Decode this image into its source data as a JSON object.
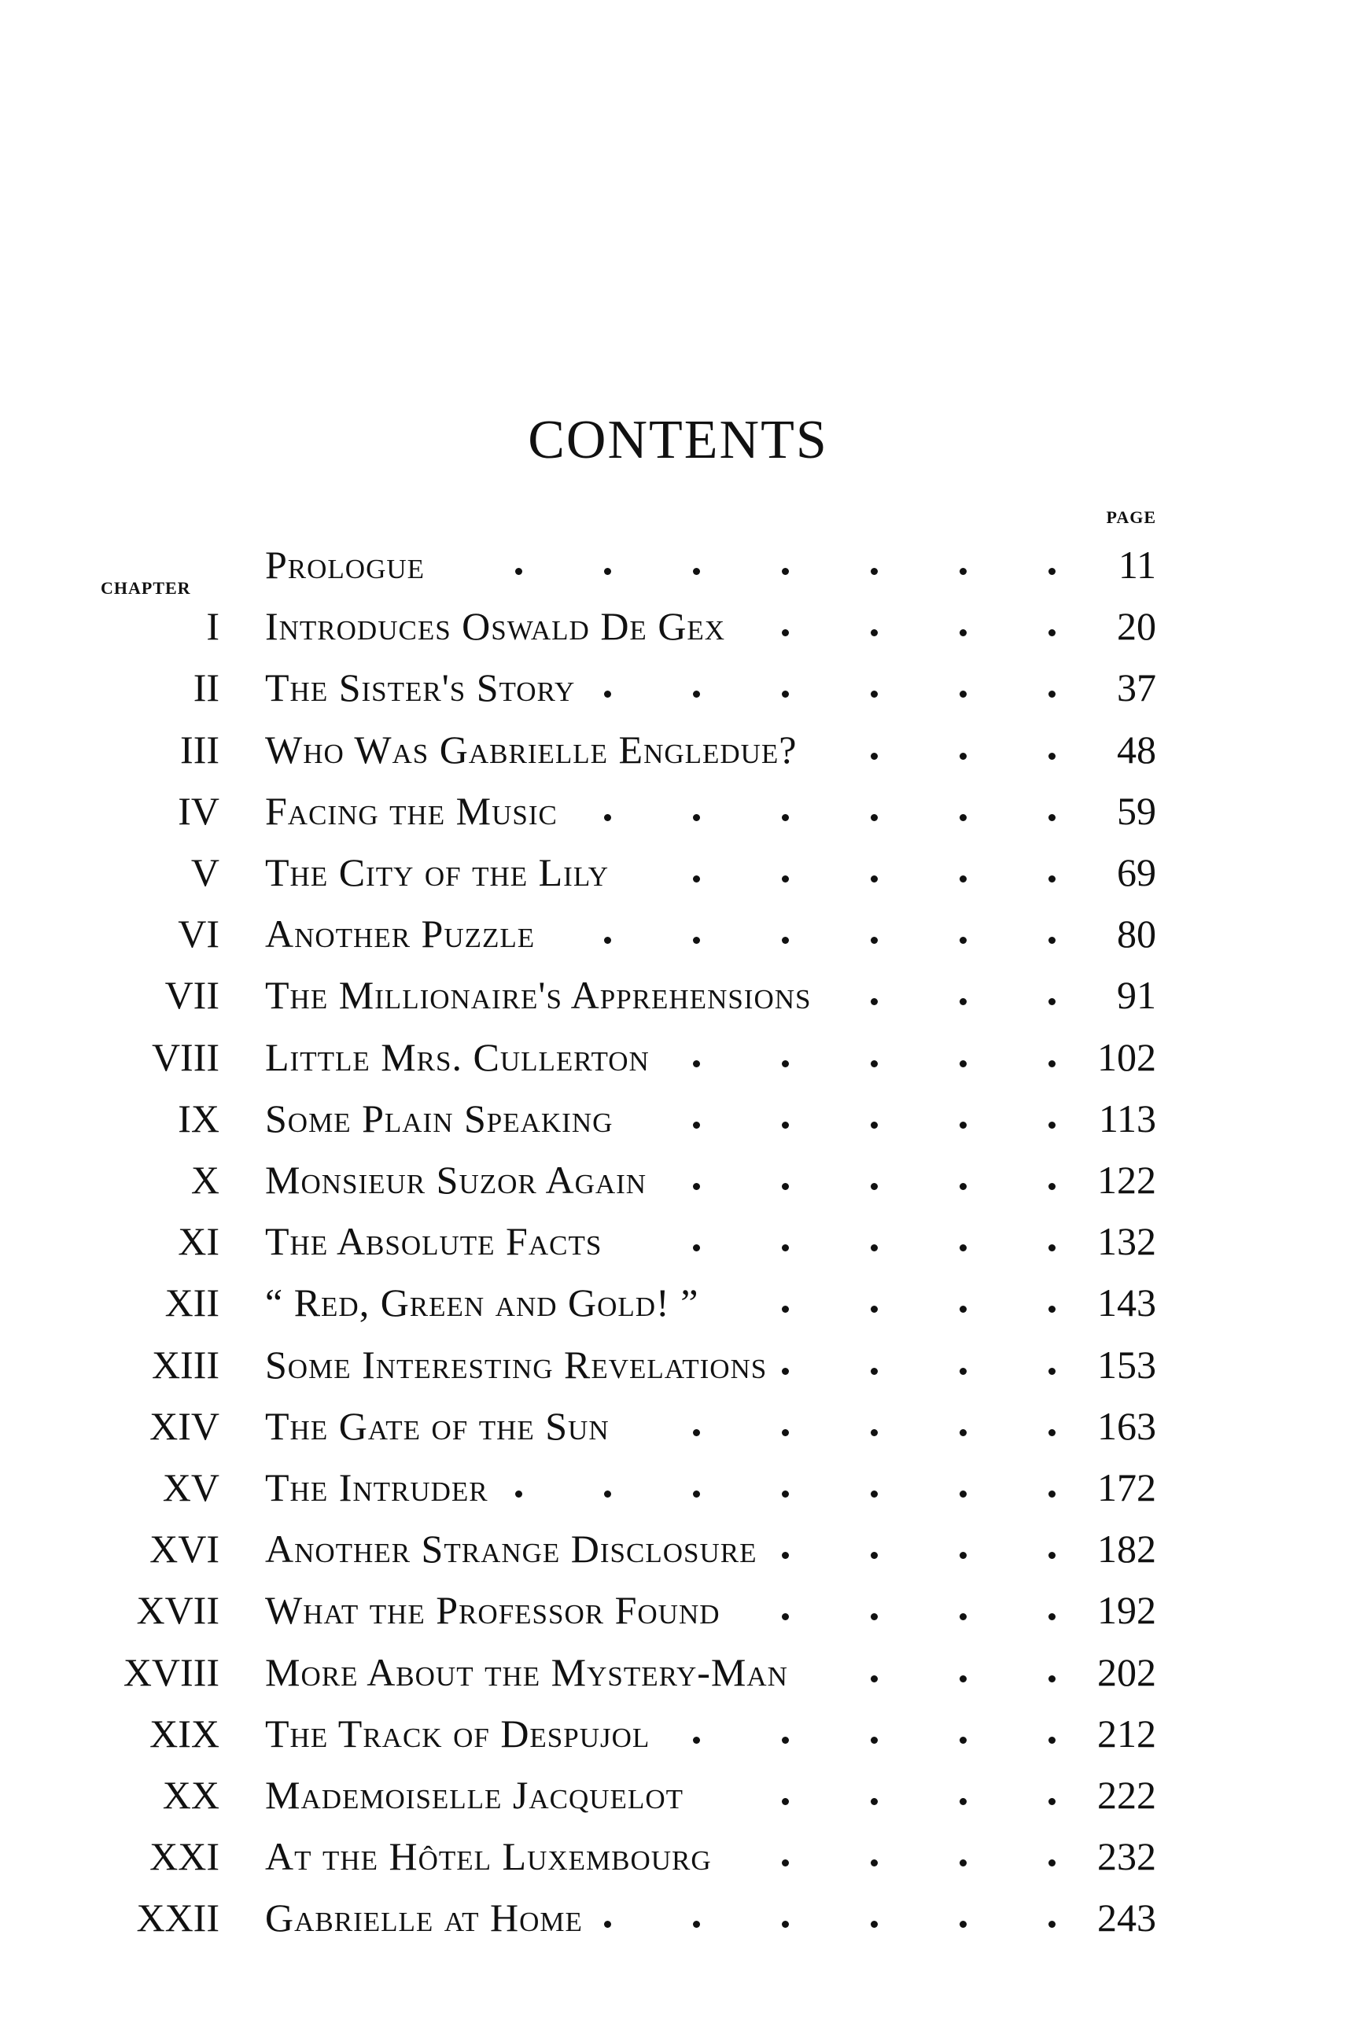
{
  "title": "CONTENTS",
  "page_label": "PAGE",
  "chapter_label": "CHAPTER",
  "entries": [
    {
      "chapter": "",
      "title": "Prologue",
      "page": "11"
    },
    {
      "chapter": "I",
      "title": "Introduces Oswald De Gex",
      "page": "20"
    },
    {
      "chapter": "II",
      "title": "The Sister's Story",
      "page": "37"
    },
    {
      "chapter": "III",
      "title": "Who Was Gabrielle Engledue?",
      "page": "48"
    },
    {
      "chapter": "IV",
      "title": "Facing the Music",
      "page": "59"
    },
    {
      "chapter": "V",
      "title": "The City of the Lily",
      "page": "69"
    },
    {
      "chapter": "VI",
      "title": "Another Puzzle",
      "page": "80"
    },
    {
      "chapter": "VII",
      "title": "The Millionaire's Apprehensions",
      "page": "91"
    },
    {
      "chapter": "VIII",
      "title": "Little Mrs. Cullerton",
      "page": "102"
    },
    {
      "chapter": "IX",
      "title": "Some Plain Speaking",
      "page": "113"
    },
    {
      "chapter": "X",
      "title": "Monsieur Suzor Again",
      "page": "122"
    },
    {
      "chapter": "XI",
      "title": "The Absolute Facts",
      "page": "132"
    },
    {
      "chapter": "XII",
      "title": "“ Red, Green and Gold! ”",
      "page": "143"
    },
    {
      "chapter": "XIII",
      "title": "Some Interesting Revelations",
      "page": "153"
    },
    {
      "chapter": "XIV",
      "title": "The Gate of the Sun",
      "page": "163"
    },
    {
      "chapter": "XV",
      "title": "The Intruder",
      "page": "172"
    },
    {
      "chapter": "XVI",
      "title": "Another Strange Disclosure",
      "page": "182"
    },
    {
      "chapter": "XVII",
      "title": "What the Professor Found",
      "page": "192"
    },
    {
      "chapter": "XVIII",
      "title": "More About the Mystery-Man",
      "page": "202"
    },
    {
      "chapter": "XIX",
      "title": "The Track of Despujol",
      "page": "212"
    },
    {
      "chapter": "XX",
      "title": "Mademoiselle Jacquelot",
      "page": "222"
    },
    {
      "chapter": "XXI",
      "title": "At the Hôtel Luxembourg",
      "page": "232"
    },
    {
      "chapter": "XXII",
      "title": "Gabrielle at Home",
      "page": "243"
    }
  ]
}
